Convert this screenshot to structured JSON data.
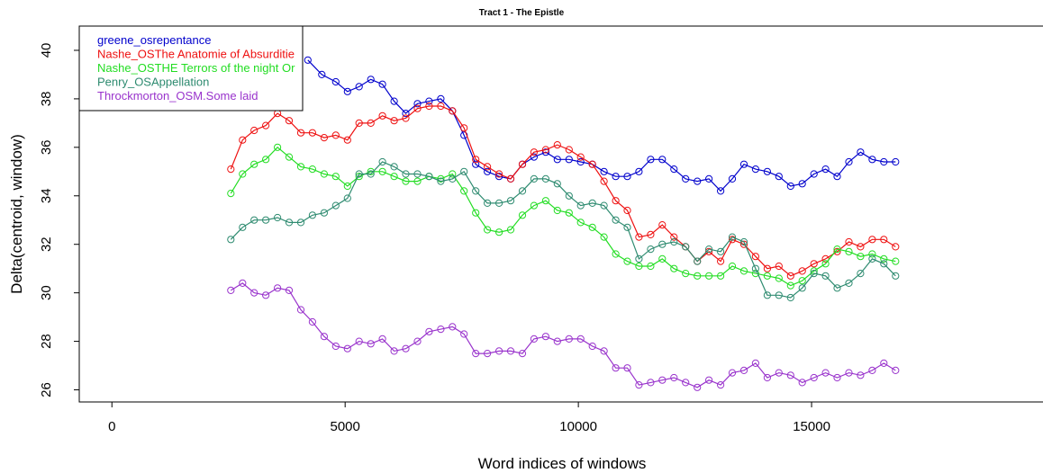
{
  "chart_data": {
    "type": "line",
    "title": "Tract 1 - The Epistle",
    "xlabel": "Word indices of windows",
    "ylabel": "Delta(centroid, window)",
    "xlim": [
      -700,
      20000
    ],
    "ylim": [
      25.5,
      41
    ],
    "x_ticks": [
      0,
      5000,
      10000,
      15000
    ],
    "y_ticks": [
      26,
      28,
      30,
      32,
      34,
      36,
      38,
      40
    ],
    "grid": false,
    "legend_position": "top-left",
    "series": [
      {
        "name": "greene_osrepentance",
        "color": "#0000cc",
        "x": [
          4200,
          4500,
          4800,
          5050,
          5300,
          5550,
          5800,
          6050,
          6300,
          6550,
          6800,
          7050,
          7300,
          7550,
          7800,
          8050,
          8300,
          8550,
          8800,
          9050,
          9300,
          9550,
          9800,
          10050,
          10300,
          10550,
          10800,
          11050,
          11300,
          11550,
          11800,
          12050,
          12300,
          12550,
          12800,
          13050,
          13300,
          13550,
          13800,
          14050,
          14300,
          14550,
          14800,
          15050,
          15300,
          15550,
          15800,
          16050,
          16300,
          16550,
          16800
        ],
        "values": [
          39.6,
          39.0,
          38.7,
          38.3,
          38.5,
          38.8,
          38.6,
          37.9,
          37.4,
          37.8,
          37.9,
          38.0,
          37.5,
          36.5,
          35.3,
          35.0,
          34.8,
          34.7,
          35.3,
          35.6,
          35.8,
          35.5,
          35.5,
          35.4,
          35.3,
          35.0,
          34.8,
          34.8,
          35.0,
          35.5,
          35.5,
          35.1,
          34.7,
          34.6,
          34.7,
          34.2,
          34.7,
          35.3,
          35.1,
          35.0,
          34.8,
          34.4,
          34.5,
          34.9,
          35.1,
          34.8,
          35.4,
          35.8,
          35.5,
          35.4,
          35.4
        ]
      },
      {
        "name": "Nashe_OSThe Anatomie of Absurditie",
        "color": "#ee1111",
        "x": [
          2550,
          2800,
          3050,
          3300,
          3550,
          3800,
          4050,
          4300,
          4550,
          4800,
          5050,
          5300,
          5550,
          5800,
          6050,
          6300,
          6550,
          6800,
          7050,
          7300,
          7550,
          7800,
          8050,
          8300,
          8550,
          8800,
          9050,
          9300,
          9550,
          9800,
          10050,
          10300,
          10550,
          10800,
          11050,
          11300,
          11550,
          11800,
          12050,
          12300,
          12550,
          12800,
          13050,
          13300,
          13550,
          13800,
          14050,
          14300,
          14550,
          14800,
          15050,
          15300,
          15550,
          15800,
          16050,
          16300,
          16550,
          16800
        ],
        "values": [
          35.1,
          36.3,
          36.7,
          36.9,
          37.4,
          37.1,
          36.6,
          36.6,
          36.4,
          36.5,
          36.3,
          37.0,
          37.0,
          37.3,
          37.1,
          37.2,
          37.6,
          37.7,
          37.7,
          37.5,
          36.8,
          35.5,
          35.2,
          34.9,
          34.7,
          35.3,
          35.8,
          35.9,
          36.1,
          35.9,
          35.6,
          35.3,
          34.6,
          33.8,
          33.4,
          32.3,
          32.4,
          32.8,
          32.3,
          31.9,
          31.3,
          31.7,
          31.3,
          32.2,
          32.0,
          31.5,
          31.0,
          31.1,
          30.7,
          30.9,
          31.2,
          31.4,
          31.7,
          32.1,
          31.9,
          32.2,
          32.2,
          31.9
        ]
      },
      {
        "name": "Nashe_OSTHE Terrors of the night Or",
        "color": "#22dd22",
        "x": [
          2550,
          2800,
          3050,
          3300,
          3550,
          3800,
          4050,
          4300,
          4550,
          4800,
          5050,
          5300,
          5550,
          5800,
          6050,
          6300,
          6550,
          6800,
          7050,
          7300,
          7550,
          7800,
          8050,
          8300,
          8550,
          8800,
          9050,
          9300,
          9550,
          9800,
          10050,
          10300,
          10550,
          10800,
          11050,
          11300,
          11550,
          11800,
          12050,
          12300,
          12550,
          12800,
          13050,
          13300,
          13550,
          13800,
          14050,
          14300,
          14550,
          14800,
          15050,
          15300,
          15550,
          15800,
          16050,
          16300,
          16550,
          16800
        ],
        "values": [
          34.1,
          34.9,
          35.3,
          35.5,
          36.0,
          35.6,
          35.2,
          35.1,
          34.9,
          34.8,
          34.4,
          34.8,
          35.0,
          35.0,
          34.8,
          34.6,
          34.6,
          34.8,
          34.7,
          34.9,
          34.2,
          33.3,
          32.6,
          32.5,
          32.6,
          33.2,
          33.6,
          33.8,
          33.4,
          33.3,
          32.9,
          32.7,
          32.3,
          31.6,
          31.3,
          31.1,
          31.1,
          31.4,
          31.0,
          30.8,
          30.7,
          30.7,
          30.7,
          31.1,
          30.9,
          30.8,
          30.7,
          30.6,
          30.3,
          30.5,
          30.9,
          31.2,
          31.8,
          31.7,
          31.5,
          31.6,
          31.4,
          31.3
        ]
      },
      {
        "name": "Penry_OSAppellation",
        "color": "#2e8b70",
        "x": [
          2550,
          2800,
          3050,
          3300,
          3550,
          3800,
          4050,
          4300,
          4550,
          4800,
          5050,
          5300,
          5550,
          5800,
          6050,
          6300,
          6550,
          6800,
          7050,
          7300,
          7550,
          7800,
          8050,
          8300,
          8550,
          8800,
          9050,
          9300,
          9550,
          9800,
          10050,
          10300,
          10550,
          10800,
          11050,
          11300,
          11550,
          11800,
          12050,
          12300,
          12550,
          12800,
          13050,
          13300,
          13550,
          13800,
          14050,
          14300,
          14550,
          14800,
          15050,
          15300,
          15550,
          15800,
          16050,
          16300,
          16550,
          16800
        ],
        "values": [
          32.2,
          32.7,
          33.0,
          33.0,
          33.1,
          32.9,
          32.9,
          33.2,
          33.3,
          33.6,
          33.9,
          34.9,
          34.9,
          35.4,
          35.2,
          34.9,
          34.9,
          34.8,
          34.6,
          34.7,
          35.0,
          34.2,
          33.7,
          33.7,
          33.8,
          34.2,
          34.7,
          34.7,
          34.5,
          34.0,
          33.6,
          33.7,
          33.6,
          33.0,
          32.7,
          31.4,
          31.8,
          32.0,
          32.1,
          31.9,
          31.3,
          31.8,
          31.7,
          32.3,
          32.1,
          31.0,
          29.9,
          29.9,
          29.8,
          30.2,
          30.8,
          30.7,
          30.2,
          30.4,
          30.8,
          31.4,
          31.2,
          30.7
        ]
      },
      {
        "name": "Throckmorton_OSM.Some laid",
        "color": "#9933cc",
        "x": [
          2550,
          2800,
          3050,
          3300,
          3550,
          3800,
          4050,
          4300,
          4550,
          4800,
          5050,
          5300,
          5550,
          5800,
          6050,
          6300,
          6550,
          6800,
          7050,
          7300,
          7550,
          7800,
          8050,
          8300,
          8550,
          8800,
          9050,
          9300,
          9550,
          9800,
          10050,
          10300,
          10550,
          10800,
          11050,
          11300,
          11550,
          11800,
          12050,
          12300,
          12550,
          12800,
          13050,
          13300,
          13550,
          13800,
          14050,
          14300,
          14550,
          14800,
          15050,
          15300,
          15550,
          15800,
          16050,
          16300,
          16550,
          16800
        ],
        "values": [
          30.1,
          30.4,
          30.0,
          29.9,
          30.2,
          30.1,
          29.3,
          28.8,
          28.2,
          27.8,
          27.7,
          28.0,
          27.9,
          28.1,
          27.6,
          27.7,
          28.0,
          28.4,
          28.5,
          28.6,
          28.3,
          27.5,
          27.5,
          27.6,
          27.6,
          27.5,
          28.1,
          28.2,
          28.0,
          28.1,
          28.1,
          27.8,
          27.6,
          26.9,
          26.9,
          26.2,
          26.3,
          26.4,
          26.5,
          26.3,
          26.1,
          26.4,
          26.2,
          26.7,
          26.8,
          27.1,
          26.5,
          26.7,
          26.6,
          26.3,
          26.5,
          26.7,
          26.5,
          26.7,
          26.6,
          26.8,
          27.1,
          26.8
        ]
      }
    ]
  }
}
